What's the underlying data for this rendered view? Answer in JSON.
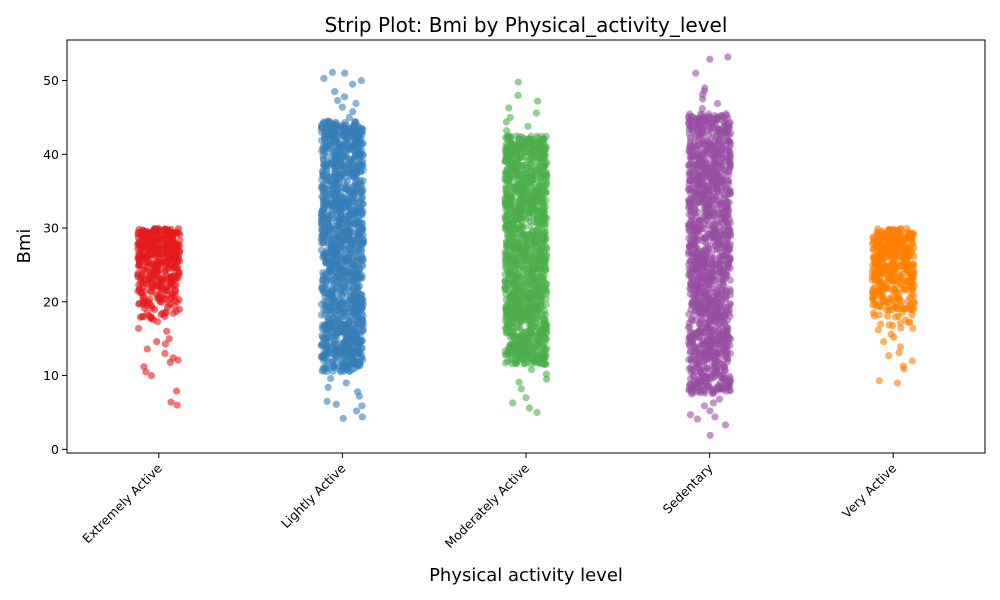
{
  "chart_data": {
    "type": "scatter",
    "title": "Strip Plot: Bmi by Physical_activity_level",
    "xlabel": "Physical activity level",
    "ylabel": "Bmi",
    "ylim": [
      -0.5,
      55.5
    ],
    "yticks": [
      0,
      10,
      20,
      30,
      40,
      50
    ],
    "grid": false,
    "categories": [
      "Extremely Active",
      "Lightly Active",
      "Moderately Active",
      "Sedentary",
      "Very Active"
    ],
    "series": [
      {
        "category": "Extremely Active",
        "color": "#e41a1c",
        "density": "sparse",
        "core_range": [
          17,
          30
        ],
        "tails": [
          6,
          6.4,
          7.9,
          10,
          10.5,
          11.2,
          11.8,
          12.1,
          12.4,
          13.0,
          13.6,
          14.3,
          14.6,
          15.0,
          16.0,
          16.4
        ]
      },
      {
        "category": "Lightly Active",
        "color": "#377eb8",
        "density": "dense",
        "core_range": [
          10.5,
          44.5
        ],
        "tails": [
          4.2,
          4.4,
          5.2,
          5.9,
          6.1,
          6.5,
          7.2,
          7.8,
          8.4,
          9.0,
          9.6,
          45.0,
          45.8,
          46.4,
          46.9,
          47.3,
          47.8,
          48.5,
          49.5,
          50.0,
          50.3,
          51.0,
          51.1
        ]
      },
      {
        "category": "Moderately Active",
        "color": "#4daf4a",
        "density": "dense",
        "core_range": [
          11.5,
          42.5
        ],
        "tails": [
          5.0,
          5.6,
          6.3,
          7.0,
          8.2,
          9.1,
          9.5,
          10.2,
          10.8,
          43.2,
          43.8,
          44.4,
          45.0,
          45.6,
          46.3,
          47.2,
          48.0,
          49.8
        ]
      },
      {
        "category": "Sedentary",
        "color": "#984ea3",
        "density": "dense",
        "core_range": [
          7.5,
          45.5
        ],
        "tails": [
          1.9,
          3.3,
          4.1,
          4.4,
          4.7,
          5.2,
          5.9,
          6.3,
          6.8,
          46.2,
          46.9,
          47.5,
          48.1,
          48.6,
          49.0,
          51.0,
          52.9,
          53.2
        ]
      },
      {
        "category": "Very Active",
        "color": "#ff7f00",
        "density": "sparse",
        "core_range": [
          16,
          30
        ],
        "tails": [
          9.0,
          9.3,
          10.9,
          11.3,
          12.0,
          12.7,
          13.1,
          13.9,
          14.6,
          15.2,
          15.6
        ]
      }
    ]
  }
}
